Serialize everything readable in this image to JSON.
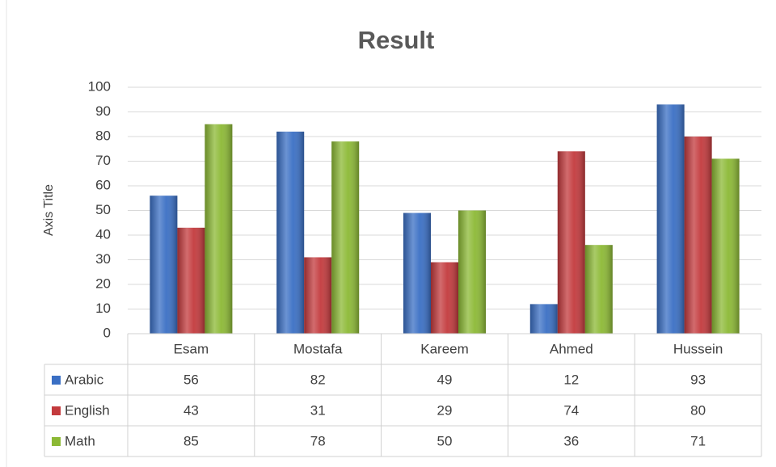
{
  "chart_data": {
    "type": "bar",
    "title": "Result",
    "y_axis_label": "Axis Title",
    "categories": [
      "Esam",
      "Mostafa",
      "Kareem",
      "Ahmed",
      "Hussein"
    ],
    "series": [
      {
        "name": "Arabic",
        "color": "#3a6fc4",
        "values": [
          56,
          82,
          49,
          12,
          93
        ]
      },
      {
        "name": "English",
        "color": "#c33a3d",
        "values": [
          43,
          31,
          29,
          74,
          80
        ]
      },
      {
        "name": "Math",
        "color": "#8cb935",
        "values": [
          85,
          78,
          50,
          36,
          71
        ]
      }
    ],
    "ylim": [
      0,
      100
    ],
    "yticks": [
      0,
      10,
      20,
      30,
      40,
      50,
      60,
      70,
      80,
      90,
      100
    ],
    "grid": true,
    "data_table": true
  }
}
